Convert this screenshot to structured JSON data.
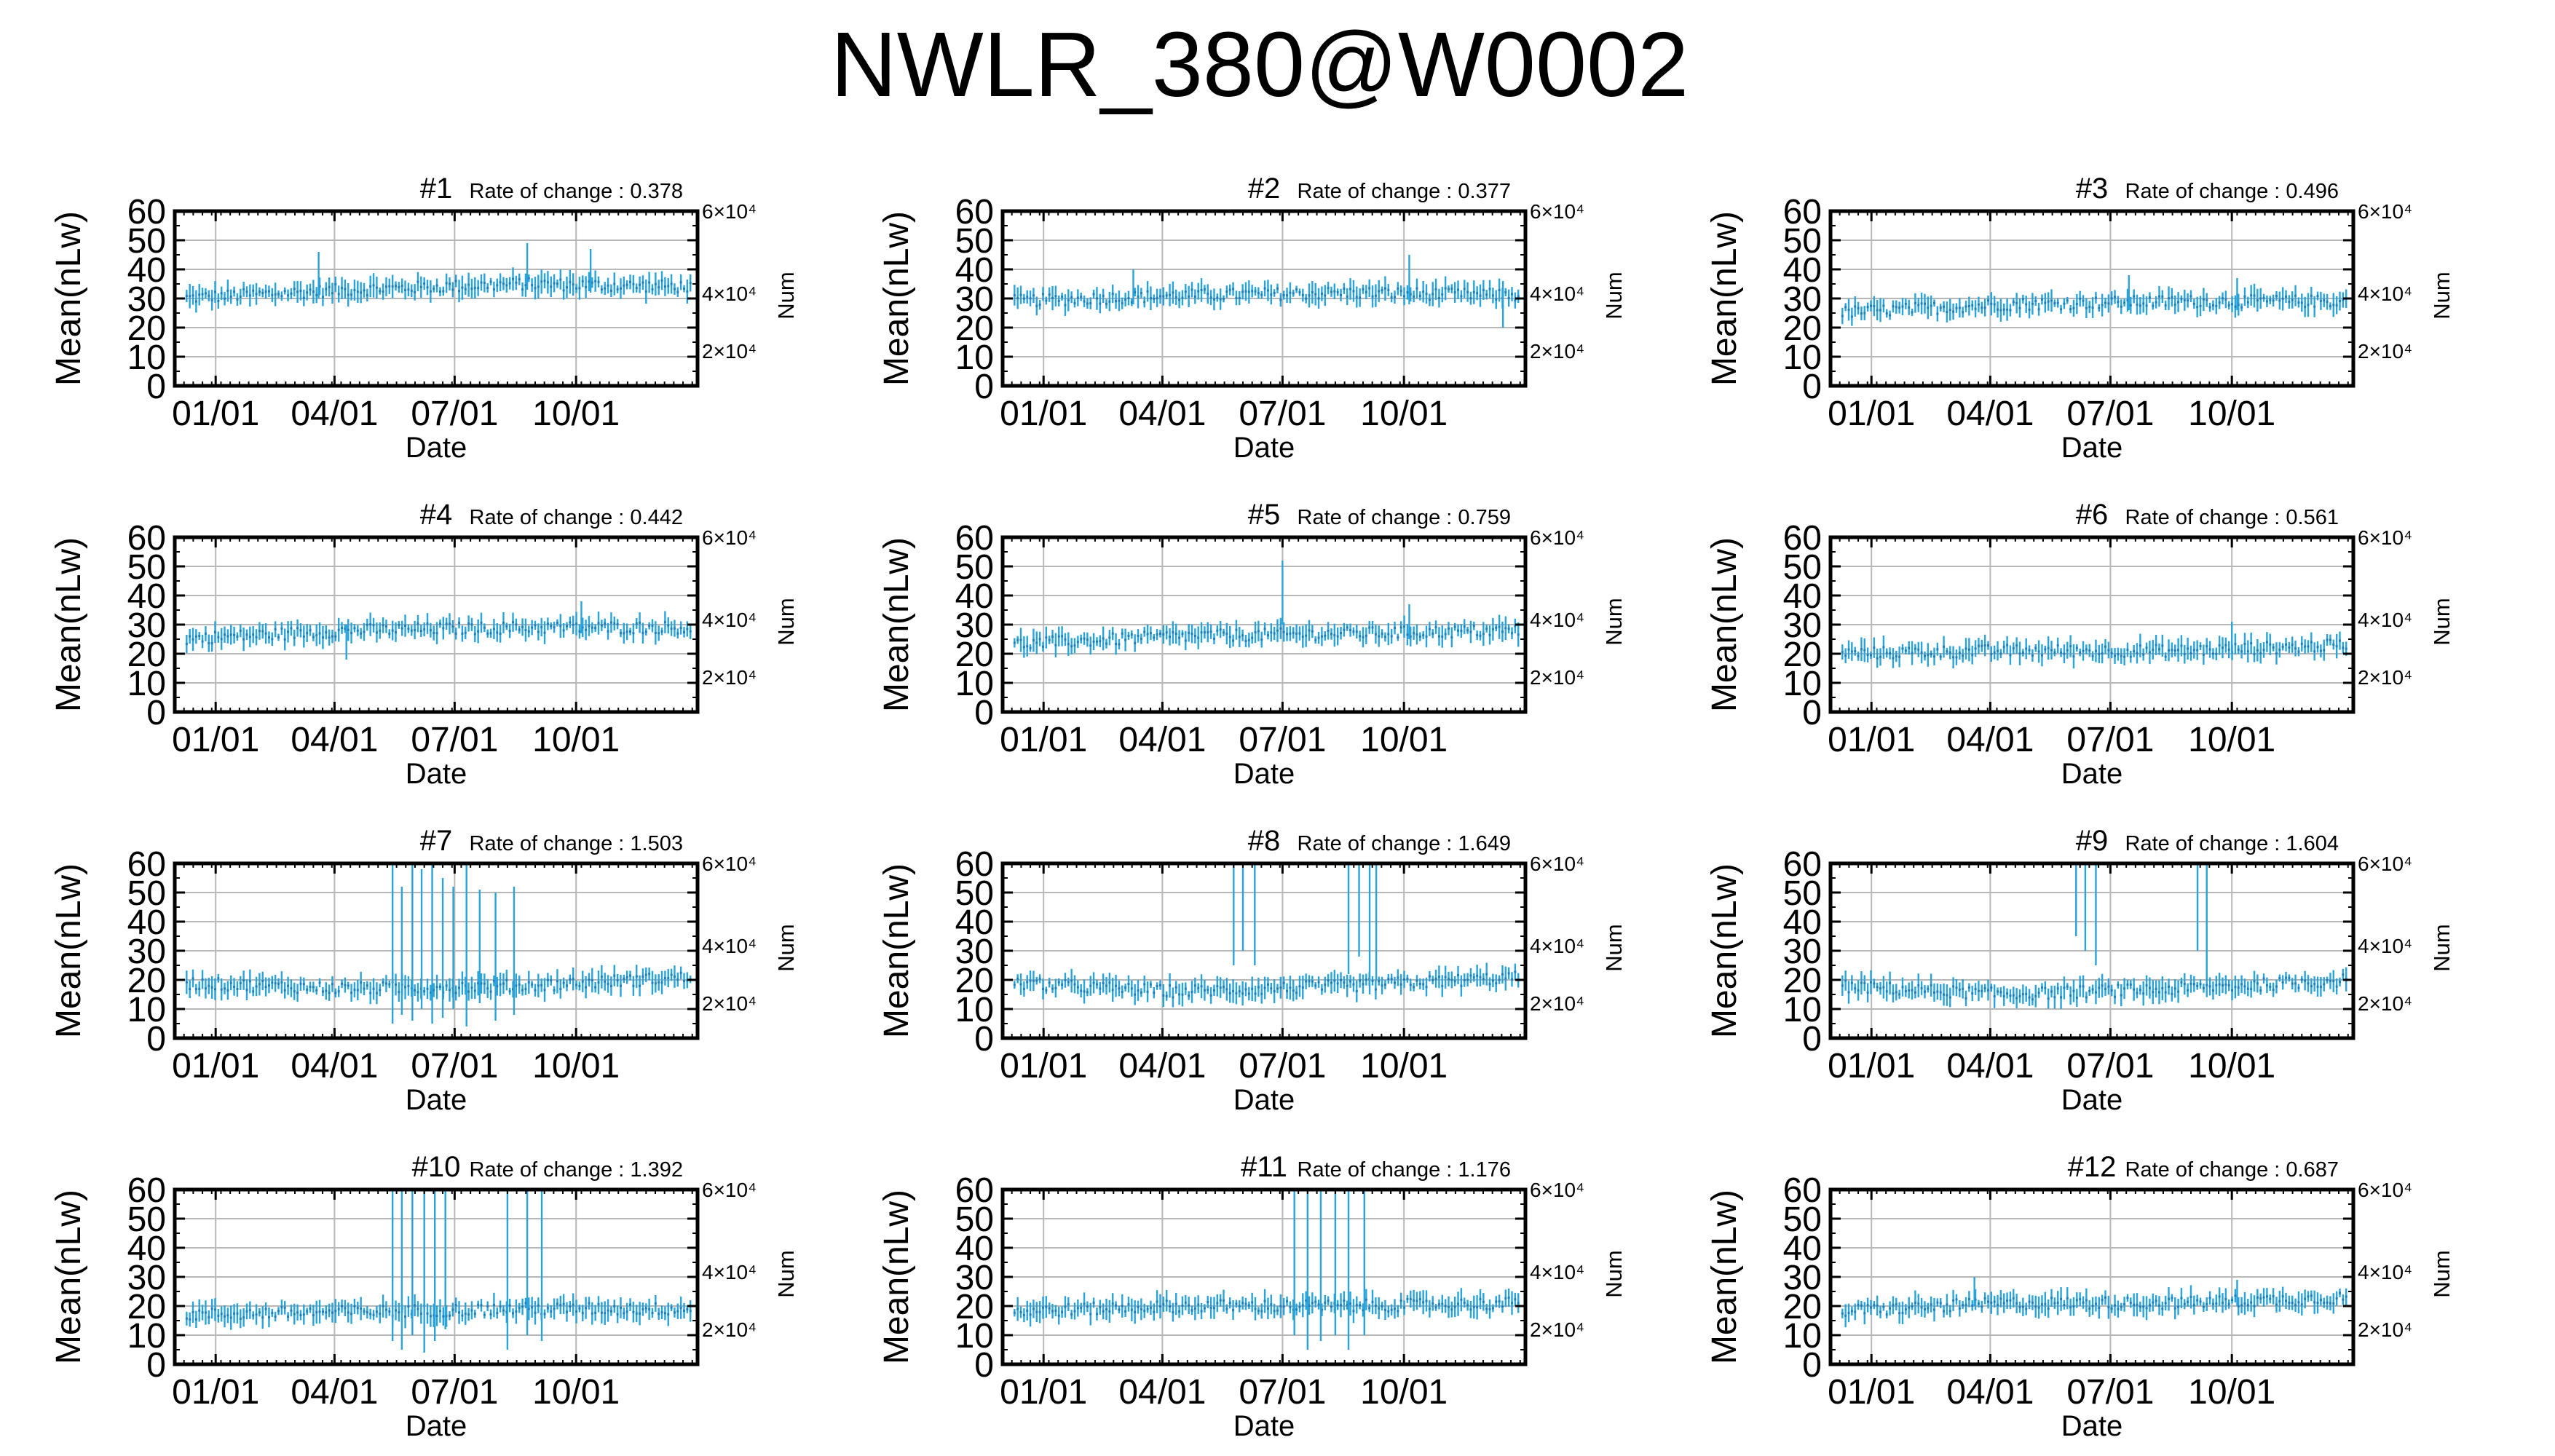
{
  "title": "NWLR_380@W0002",
  "chart_data": [
    {
      "type": "scatter",
      "title": "#1",
      "rate_of_change": "Rate of change : 0.378",
      "ylabel": "Mean(nLw)",
      "xlabel": "Date",
      "y2label": "Num",
      "xticks": [
        "01/01",
        "04/01",
        "07/01",
        "10/01"
      ],
      "yticks": [
        "0",
        "10",
        "20",
        "30",
        "40",
        "50",
        "60"
      ],
      "y2ticks": [
        "2×10⁴",
        "4×10⁴",
        "6×10⁴"
      ],
      "ylim": [
        0,
        60
      ],
      "xlim": [
        "12/01",
        "12/31"
      ],
      "baseline": [
        30,
        33,
        35,
        34
      ],
      "spread": 3,
      "spikes": [
        {
          "date": "03/20",
          "low": 30,
          "high": 46
        },
        {
          "date": "08/25",
          "low": 33,
          "high": 49
        },
        {
          "date": "10/12",
          "low": 32,
          "high": 47
        }
      ],
      "series_color": "#29a3da"
    },
    {
      "type": "scatter",
      "title": "#2",
      "rate_of_change": "Rate of change : 0.377",
      "ylabel": "Mean(nLw)",
      "xlabel": "Date",
      "y2label": "Num",
      "xticks": [
        "01/01",
        "04/01",
        "07/01",
        "10/01"
      ],
      "yticks": [
        "0",
        "10",
        "20",
        "30",
        "40",
        "50",
        "60"
      ],
      "y2ticks": [
        "2×10⁴",
        "4×10⁴",
        "6×10⁴"
      ],
      "ylim": [
        0,
        60
      ],
      "xlim": [
        "12/01",
        "12/31"
      ],
      "baseline": [
        29,
        31,
        32,
        31
      ],
      "spread": 3,
      "spikes": [
        {
          "date": "03/10",
          "low": 28,
          "high": 40
        },
        {
          "date": "10/05",
          "low": 28,
          "high": 45
        },
        {
          "date": "12/15",
          "low": 20,
          "high": 36
        }
      ],
      "series_color": "#29a3da"
    },
    {
      "type": "scatter",
      "title": "#3",
      "rate_of_change": "Rate of change : 0.496",
      "ylabel": "Mean(nLw)",
      "xlabel": "Date",
      "y2label": "Num",
      "xticks": [
        "01/01",
        "04/01",
        "07/01",
        "10/01"
      ],
      "yticks": [
        "0",
        "10",
        "20",
        "30",
        "40",
        "50",
        "60"
      ],
      "y2ticks": [
        "2×10⁴",
        "4×10⁴",
        "6×10⁴"
      ],
      "ylim": [
        0,
        60
      ],
      "xlim": [
        "12/01",
        "12/31"
      ],
      "baseline": [
        25,
        28,
        29,
        29
      ],
      "spread": 3,
      "spikes": [
        {
          "date": "07/15",
          "low": 26,
          "high": 38
        },
        {
          "date": "10/05",
          "low": 26,
          "high": 37
        }
      ],
      "series_color": "#29a3da"
    },
    {
      "type": "scatter",
      "title": "#4",
      "rate_of_change": "Rate of change : 0.442",
      "ylabel": "Mean(nLw)",
      "xlabel": "Date",
      "y2label": "Num",
      "xticks": [
        "01/01",
        "04/01",
        "07/01",
        "10/01"
      ],
      "yticks": [
        "0",
        "10",
        "20",
        "30",
        "40",
        "50",
        "60"
      ],
      "y2ticks": [
        "2×10⁴",
        "4×10⁴",
        "6×10⁴"
      ],
      "ylim": [
        0,
        60
      ],
      "xlim": [
        "12/01",
        "12/31"
      ],
      "baseline": [
        25,
        28,
        29,
        29
      ],
      "spread": 3,
      "spikes": [
        {
          "date": "04/10",
          "low": 18,
          "high": 30
        },
        {
          "date": "10/05",
          "low": 27,
          "high": 38
        }
      ],
      "series_color": "#29a3da"
    },
    {
      "type": "scatter",
      "title": "#5",
      "rate_of_change": "Rate of change : 0.759",
      "ylabel": "Mean(nLw)",
      "xlabel": "Date",
      "y2label": "Num",
      "xticks": [
        "01/01",
        "04/01",
        "07/01",
        "10/01"
      ],
      "yticks": [
        "0",
        "10",
        "20",
        "30",
        "40",
        "50",
        "60"
      ],
      "y2ticks": [
        "2×10⁴",
        "4×10⁴",
        "6×10⁴"
      ],
      "ylim": [
        0,
        60
      ],
      "xlim": [
        "12/01",
        "12/31"
      ],
      "baseline": [
        23,
        26,
        27,
        28
      ],
      "spread": 3,
      "spikes": [
        {
          "date": "07/01",
          "low": 30,
          "high": 52
        },
        {
          "date": "10/05",
          "low": 25,
          "high": 37
        }
      ],
      "series_color": "#29a3da"
    },
    {
      "type": "scatter",
      "title": "#6",
      "rate_of_change": "Rate of change : 0.561",
      "ylabel": "Mean(nLw)",
      "xlabel": "Date",
      "y2label": "Num",
      "xticks": [
        "01/01",
        "04/01",
        "07/01",
        "10/01"
      ],
      "yticks": [
        "0",
        "10",
        "20",
        "30",
        "40",
        "50",
        "60"
      ],
      "y2ticks": [
        "2×10⁴",
        "4×10⁴",
        "6×10⁴"
      ],
      "ylim": [
        0,
        60
      ],
      "xlim": [
        "12/01",
        "12/31"
      ],
      "baseline": [
        20,
        21,
        21,
        23
      ],
      "spread": 3,
      "spikes": [
        {
          "date": "10/01",
          "low": 20,
          "high": 31
        }
      ],
      "series_color": "#29a3da"
    },
    {
      "type": "scatter",
      "title": "#7",
      "rate_of_change": "Rate of change : 1.503",
      "ylabel": "Mean(nLw)",
      "xlabel": "Date",
      "y2label": "Num",
      "xticks": [
        "01/01",
        "04/01",
        "07/01",
        "10/01"
      ],
      "yticks": [
        "0",
        "10",
        "20",
        "30",
        "40",
        "50",
        "60"
      ],
      "y2ticks": [
        "2×10⁴",
        "4×10⁴",
        "6×10⁴"
      ],
      "ylim": [
        0,
        60
      ],
      "xlim": [
        "12/01",
        "12/31"
      ],
      "baseline": [
        19,
        17,
        18,
        21
      ],
      "spread": 3,
      "spikes": [
        {
          "date": "05/15",
          "low": 5,
          "high": 60
        },
        {
          "date": "05/22",
          "low": 8,
          "high": 52
        },
        {
          "date": "05/30",
          "low": 6,
          "high": 60
        },
        {
          "date": "06/06",
          "low": 10,
          "high": 58
        },
        {
          "date": "06/14",
          "low": 5,
          "high": 60
        },
        {
          "date": "06/22",
          "low": 7,
          "high": 55
        },
        {
          "date": "06/30",
          "low": 10,
          "high": 52
        },
        {
          "date": "07/10",
          "low": 4,
          "high": 60
        },
        {
          "date": "07/20",
          "low": 12,
          "high": 51
        },
        {
          "date": "08/01",
          "low": 6,
          "high": 50
        },
        {
          "date": "08/15",
          "low": 8,
          "high": 52
        }
      ],
      "series_color": "#29a3da"
    },
    {
      "type": "scatter",
      "title": "#8",
      "rate_of_change": "Rate of change : 1.649",
      "ylabel": "Mean(nLw)",
      "xlabel": "Date",
      "y2label": "Num",
      "xticks": [
        "01/01",
        "04/01",
        "07/01",
        "10/01"
      ],
      "yticks": [
        "0",
        "10",
        "20",
        "30",
        "40",
        "50",
        "60"
      ],
      "y2ticks": [
        "2×10⁴",
        "4×10⁴",
        "6×10⁴"
      ],
      "ylim": [
        0,
        60
      ],
      "xlim": [
        "12/01",
        "12/31"
      ],
      "baseline": [
        19,
        16,
        18,
        21
      ],
      "spread": 3,
      "spikes": [
        {
          "date": "05/25",
          "low": 25,
          "high": 60
        },
        {
          "date": "06/01",
          "low": 30,
          "high": 60
        },
        {
          "date": "06/10",
          "low": 25,
          "high": 60
        },
        {
          "date": "08/20",
          "low": 22,
          "high": 60
        },
        {
          "date": "08/28",
          "low": 28,
          "high": 60
        },
        {
          "date": "09/05",
          "low": 15,
          "high": 60
        },
        {
          "date": "09/10",
          "low": 20,
          "high": 60
        }
      ],
      "series_color": "#29a3da"
    },
    {
      "type": "scatter",
      "title": "#9",
      "rate_of_change": "Rate of change : 1.604",
      "ylabel": "Mean(nLw)",
      "xlabel": "Date",
      "y2label": "Num",
      "xticks": [
        "01/01",
        "04/01",
        "07/01",
        "10/01"
      ],
      "yticks": [
        "0",
        "10",
        "20",
        "30",
        "40",
        "50",
        "60"
      ],
      "y2ticks": [
        "2×10⁴",
        "4×10⁴",
        "6×10⁴"
      ],
      "ylim": [
        0,
        60
      ],
      "xlim": [
        "12/01",
        "12/31"
      ],
      "baseline": [
        18,
        15,
        17,
        20
      ],
      "spread": 3,
      "spikes": [
        {
          "date": "06/05",
          "low": 35,
          "high": 60
        },
        {
          "date": "06/12",
          "low": 30,
          "high": 60
        },
        {
          "date": "06/20",
          "low": 25,
          "high": 60
        },
        {
          "date": "09/05",
          "low": 30,
          "high": 60
        },
        {
          "date": "09/12",
          "low": 20,
          "high": 60
        }
      ],
      "series_color": "#29a3da"
    },
    {
      "type": "scatter",
      "title": "#10",
      "rate_of_change": "Rate of change : 1.392",
      "ylabel": "Mean(nLw)",
      "xlabel": "Date",
      "y2label": "Num",
      "xticks": [
        "01/01",
        "04/01",
        "07/01",
        "10/01"
      ],
      "yticks": [
        "0",
        "10",
        "20",
        "30",
        "40",
        "50",
        "60"
      ],
      "y2ticks": [
        "2×10⁴",
        "4×10⁴",
        "6×10⁴"
      ],
      "ylim": [
        0,
        60
      ],
      "xlim": [
        "12/01",
        "12/31"
      ],
      "baseline": [
        17,
        18,
        19,
        19
      ],
      "spread": 3,
      "spikes": [
        {
          "date": "05/15",
          "low": 8,
          "high": 60
        },
        {
          "date": "05/22",
          "low": 5,
          "high": 60
        },
        {
          "date": "05/30",
          "low": 10,
          "high": 60
        },
        {
          "date": "06/08",
          "low": 4,
          "high": 60
        },
        {
          "date": "06/16",
          "low": 8,
          "high": 60
        },
        {
          "date": "06/24",
          "low": 12,
          "high": 60
        },
        {
          "date": "08/10",
          "low": 5,
          "high": 60
        },
        {
          "date": "08/25",
          "low": 10,
          "high": 60
        },
        {
          "date": "09/05",
          "low": 8,
          "high": 60
        }
      ],
      "series_color": "#29a3da"
    },
    {
      "type": "scatter",
      "title": "#11",
      "rate_of_change": "Rate of change : 1.176",
      "ylabel": "Mean(nLw)",
      "xlabel": "Date",
      "y2label": "Num",
      "xticks": [
        "01/01",
        "04/01",
        "07/01",
        "10/01"
      ],
      "yticks": [
        "0",
        "10",
        "20",
        "30",
        "40",
        "50",
        "60"
      ],
      "y2ticks": [
        "2×10⁴",
        "4×10⁴",
        "6×10⁴"
      ],
      "ylim": [
        0,
        60
      ],
      "xlim": [
        "12/01",
        "12/31"
      ],
      "baseline": [
        18,
        20,
        20,
        21
      ],
      "spread": 3,
      "spikes": [
        {
          "date": "07/10",
          "low": 10,
          "high": 60
        },
        {
          "date": "07/20",
          "low": 5,
          "high": 60
        },
        {
          "date": "07/30",
          "low": 8,
          "high": 60
        },
        {
          "date": "08/10",
          "low": 10,
          "high": 60
        },
        {
          "date": "08/20",
          "low": 5,
          "high": 60
        },
        {
          "date": "09/01",
          "low": 10,
          "high": 60
        }
      ],
      "series_color": "#29a3da"
    },
    {
      "type": "scatter",
      "title": "#12",
      "rate_of_change": "Rate of change : 0.687",
      "ylabel": "Mean(nLw)",
      "xlabel": "Date",
      "y2label": "Num",
      "xticks": [
        "01/01",
        "04/01",
        "07/01",
        "10/01"
      ],
      "yticks": [
        "0",
        "10",
        "20",
        "30",
        "40",
        "50",
        "60"
      ],
      "y2ticks": [
        "2×10⁴",
        "4×10⁴",
        "6×10⁴"
      ],
      "ylim": [
        0,
        60
      ],
      "xlim": [
        "12/01",
        "12/31"
      ],
      "baseline": [
        18,
        21,
        21,
        23
      ],
      "spread": 3,
      "spikes": [
        {
          "date": "03/20",
          "low": 20,
          "high": 30
        },
        {
          "date": "10/05",
          "low": 20,
          "high": 29
        }
      ],
      "series_color": "#29a3da"
    }
  ]
}
